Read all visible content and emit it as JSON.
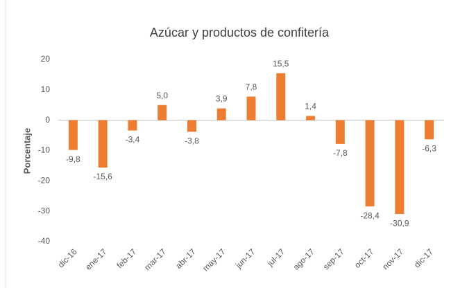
{
  "chart_data": {
    "type": "bar",
    "title": "Azúcar y productos de confitería",
    "y_label": "Porcentaje",
    "categories": [
      "dic-16",
      "ene-17",
      "feb-17",
      "mar-17",
      "abr-17",
      "may-17",
      "jun-17",
      "jul-17",
      "ago-17",
      "sep-17",
      "oct-17",
      "nov-17",
      "dic-17"
    ],
    "values": [
      -9.8,
      -15.6,
      -3.4,
      5.0,
      -3.8,
      3.9,
      7.8,
      15.5,
      1.4,
      -7.8,
      -28.4,
      -30.9,
      -6.3
    ],
    "value_labels": [
      "-9,8",
      "-15,6",
      "-3,4",
      "5,0",
      "-3,8",
      "3,9",
      "7,8",
      "15,5",
      "1,4",
      "-7,8",
      "-28,4",
      "-30,9",
      "-6,3"
    ],
    "color": "#ed7d31",
    "ylim": [
      -40,
      20
    ],
    "yticks": [
      20,
      10,
      0,
      -10,
      -20,
      -30,
      -40
    ],
    "grid": false
  }
}
